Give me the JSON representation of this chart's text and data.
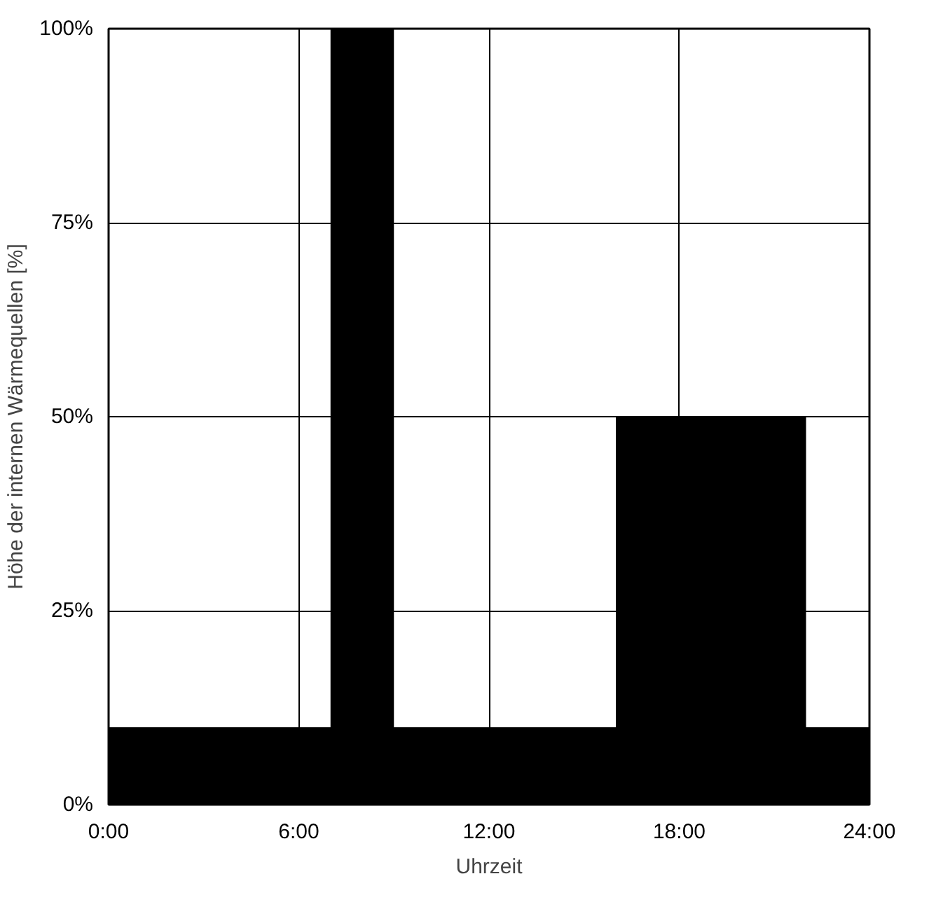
{
  "chart_data": {
    "type": "area",
    "xlabel": "Uhrzeit",
    "ylabel": "Höhe der internen Wärmequellen [%]",
    "x": [
      0,
      7,
      7,
      9,
      9,
      16,
      16,
      22,
      22,
      24
    ],
    "values": [
      10,
      10,
      100,
      100,
      10,
      10,
      50,
      50,
      10,
      10
    ],
    "color": "#000000",
    "xlim": [
      0,
      24
    ],
    "xticks": [
      {
        "value": 0,
        "label": "0:00"
      },
      {
        "value": 6,
        "label": "6:00"
      },
      {
        "value": 12,
        "label": "12:00"
      },
      {
        "value": 18,
        "label": "18:00"
      },
      {
        "value": 24,
        "label": "24:00"
      }
    ],
    "ylim": [
      0,
      100
    ],
    "yticks": [
      {
        "value": 0,
        "label": "0%"
      },
      {
        "value": 25,
        "label": "25%"
      },
      {
        "value": 50,
        "label": "50%"
      },
      {
        "value": 75,
        "label": "75%"
      },
      {
        "value": 100,
        "label": "100%"
      }
    ],
    "grid": true
  }
}
